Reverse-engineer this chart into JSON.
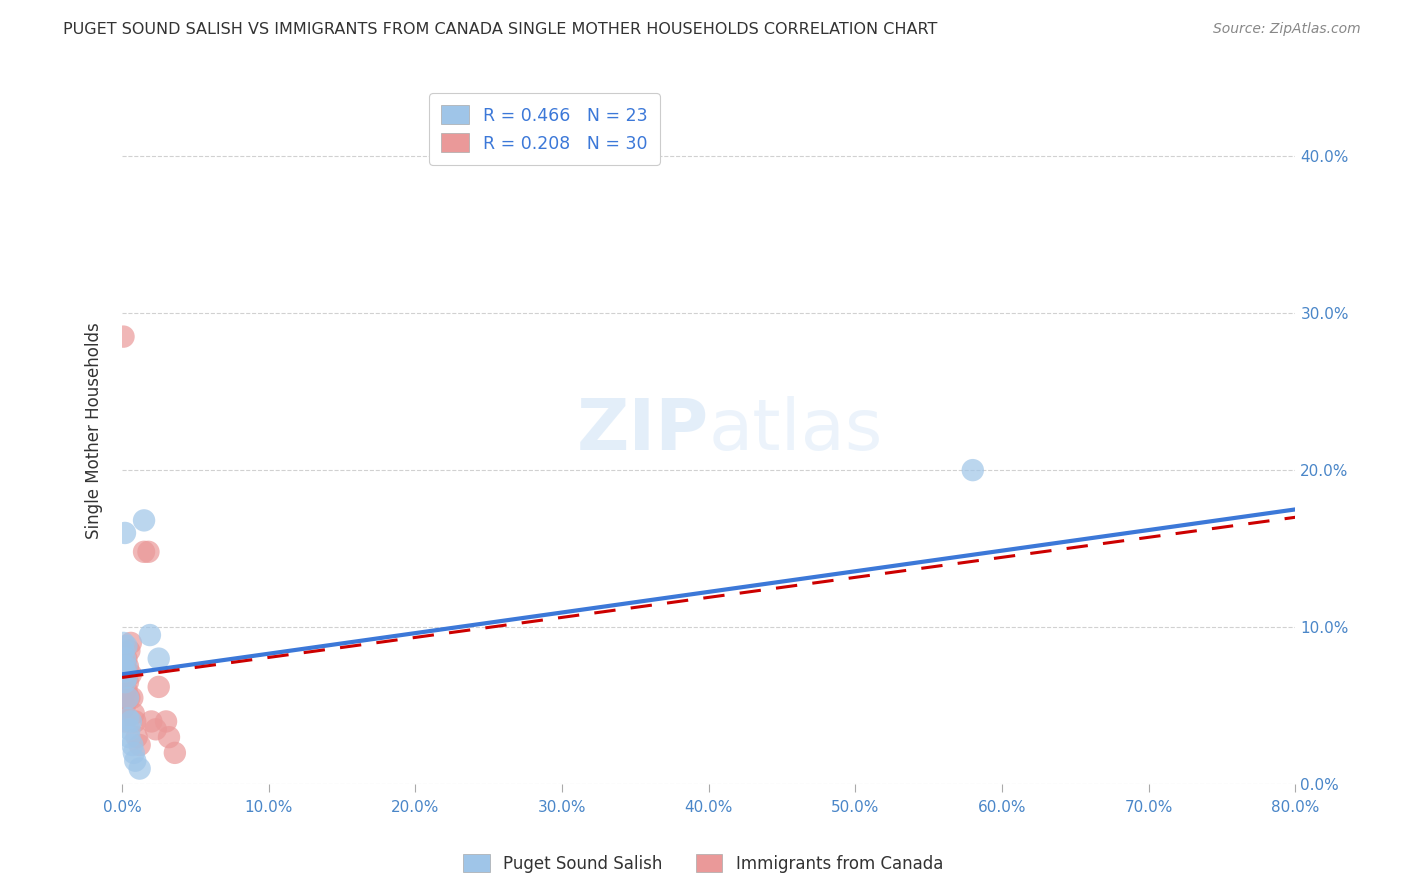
{
  "title": "PUGET SOUND SALISH VS IMMIGRANTS FROM CANADA SINGLE MOTHER HOUSEHOLDS CORRELATION CHART",
  "source": "Source: ZipAtlas.com",
  "ylabel": "Single Mother Households",
  "xlim": [
    0,
    0.8
  ],
  "ylim": [
    0,
    0.45
  ],
  "xtick_vals": [
    0.0,
    0.1,
    0.2,
    0.3,
    0.4,
    0.5,
    0.6,
    0.7,
    0.8
  ],
  "ytick_vals": [
    0.0,
    0.1,
    0.2,
    0.3,
    0.4
  ],
  "blue_color": "#9fc5e8",
  "pink_color": "#ea9999",
  "blue_line_color": "#3c78d8",
  "pink_line_color": "#cc0000",
  "background_color": "#ffffff",
  "series1_label": "Puget Sound Salish",
  "series2_label": "Immigrants from Canada",
  "blue_x": [
    0.001,
    0.001,
    0.001,
    0.002,
    0.002,
    0.002,
    0.003,
    0.003,
    0.003,
    0.004,
    0.004,
    0.005,
    0.005,
    0.006,
    0.007,
    0.008,
    0.009,
    0.012,
    0.015,
    0.019,
    0.025,
    0.58,
    0.002
  ],
  "blue_y": [
    0.075,
    0.085,
    0.09,
    0.08,
    0.072,
    0.065,
    0.068,
    0.075,
    0.088,
    0.055,
    0.042,
    0.035,
    0.03,
    0.04,
    0.025,
    0.02,
    0.015,
    0.01,
    0.168,
    0.095,
    0.08,
    0.2,
    0.16
  ],
  "pink_x": [
    0.001,
    0.001,
    0.001,
    0.002,
    0.002,
    0.002,
    0.003,
    0.003,
    0.003,
    0.004,
    0.004,
    0.004,
    0.005,
    0.005,
    0.006,
    0.006,
    0.007,
    0.008,
    0.009,
    0.01,
    0.012,
    0.015,
    0.018,
    0.02,
    0.023,
    0.025,
    0.03,
    0.032,
    0.036,
    0.001
  ],
  "pink_y": [
    0.048,
    0.055,
    0.062,
    0.068,
    0.05,
    0.04,
    0.072,
    0.06,
    0.08,
    0.075,
    0.065,
    0.055,
    0.085,
    0.055,
    0.09,
    0.07,
    0.055,
    0.045,
    0.04,
    0.03,
    0.025,
    0.148,
    0.148,
    0.04,
    0.035,
    0.062,
    0.04,
    0.03,
    0.02,
    0.285
  ],
  "blue_trend_x": [
    0.0,
    0.8
  ],
  "blue_trend_y": [
    0.07,
    0.175
  ],
  "pink_trend_x": [
    0.0,
    0.8
  ],
  "pink_trend_y": [
    0.068,
    0.17
  ]
}
